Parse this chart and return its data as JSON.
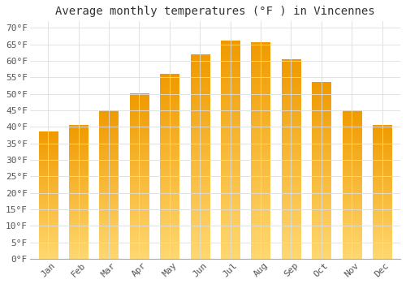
{
  "title": "Average monthly temperatures (°F ) in Vincennes",
  "months": [
    "Jan",
    "Feb",
    "Mar",
    "Apr",
    "May",
    "Jun",
    "Jul",
    "Aug",
    "Sep",
    "Oct",
    "Nov",
    "Dec"
  ],
  "values": [
    38.5,
    40.5,
    45.0,
    50.0,
    56.0,
    62.0,
    66.0,
    65.5,
    60.5,
    53.5,
    45.0,
    40.5
  ],
  "bar_color_top": "#F5A623",
  "bar_color_bottom": "#FFD880",
  "yticks": [
    0,
    5,
    10,
    15,
    20,
    25,
    30,
    35,
    40,
    45,
    50,
    55,
    60,
    65,
    70
  ],
  "ytick_labels": [
    "0°F",
    "5°F",
    "10°F",
    "15°F",
    "20°F",
    "25°F",
    "30°F",
    "35°F",
    "40°F",
    "45°F",
    "50°F",
    "55°F",
    "60°F",
    "65°F",
    "70°F"
  ],
  "ylim": [
    0,
    72
  ],
  "background_color": "#FFFFFF",
  "grid_color": "#DDDDDD",
  "title_fontsize": 10,
  "tick_fontsize": 8
}
